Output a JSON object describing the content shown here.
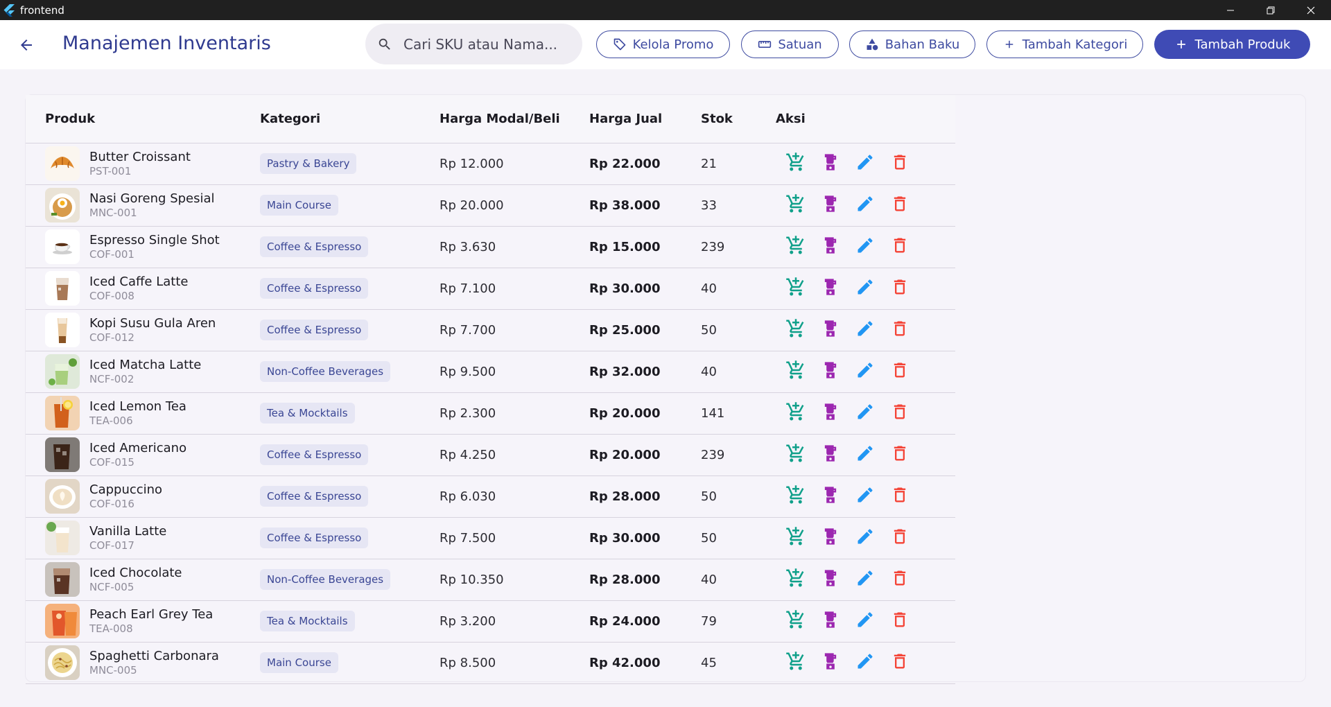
{
  "window": {
    "title": "frontend"
  },
  "header": {
    "title": "Manajemen Inventaris",
    "search_placeholder": "Cari SKU atau Nama...",
    "buttons": {
      "promo": "Kelola Promo",
      "unit": "Satuan",
      "material": "Bahan Baku",
      "add_category": "Tambah Kategori",
      "add_product": "Tambah Produk"
    }
  },
  "table": {
    "headers": [
      "Produk",
      "Kategori",
      "Harga Modal/Beli",
      "Harga Jual",
      "Stok",
      "Aksi"
    ],
    "rows": [
      {
        "name": "Butter Croissant",
        "sku": "PST-001",
        "category": "Pastry & Bakery",
        "buy": "Rp 12.000",
        "sell": "Rp 22.000",
        "stock": "21",
        "img": "croissant"
      },
      {
        "name": "Nasi Goreng Spesial",
        "sku": "MNC-001",
        "category": "Main Course",
        "buy": "Rp 20.000",
        "sell": "Rp 38.000",
        "stock": "33",
        "img": "friedrice"
      },
      {
        "name": "Espresso Single Shot",
        "sku": "COF-001",
        "category": "Coffee & Espresso",
        "buy": "Rp 3.630",
        "sell": "Rp 15.000",
        "stock": "239",
        "img": "espresso"
      },
      {
        "name": "Iced Caffe Latte",
        "sku": "COF-008",
        "category": "Coffee & Espresso",
        "buy": "Rp 7.100",
        "sell": "Rp 30.000",
        "stock": "40",
        "img": "latte"
      },
      {
        "name": "Kopi Susu Gula Aren",
        "sku": "COF-012",
        "category": "Coffee & Espresso",
        "buy": "Rp 7.700",
        "sell": "Rp 25.000",
        "stock": "50",
        "img": "palmsugar"
      },
      {
        "name": "Iced Matcha Latte",
        "sku": "NCF-002",
        "category": "Non-Coffee Beverages",
        "buy": "Rp 9.500",
        "sell": "Rp 32.000",
        "stock": "40",
        "img": "matcha"
      },
      {
        "name": "Iced Lemon Tea",
        "sku": "TEA-006",
        "category": "Tea & Mocktails",
        "buy": "Rp 2.300",
        "sell": "Rp 20.000",
        "stock": "141",
        "img": "lemontea"
      },
      {
        "name": "Iced Americano",
        "sku": "COF-015",
        "category": "Coffee & Espresso",
        "buy": "Rp 4.250",
        "sell": "Rp 20.000",
        "stock": "239",
        "img": "americano"
      },
      {
        "name": "Cappuccino",
        "sku": "COF-016",
        "category": "Coffee & Espresso",
        "buy": "Rp 6.030",
        "sell": "Rp 28.000",
        "stock": "50",
        "img": "cappuccino"
      },
      {
        "name": "Vanilla Latte",
        "sku": "COF-017",
        "category": "Coffee & Espresso",
        "buy": "Rp 7.500",
        "sell": "Rp 30.000",
        "stock": "50",
        "img": "vanilla"
      },
      {
        "name": "Iced Chocolate",
        "sku": "NCF-005",
        "category": "Non-Coffee Beverages",
        "buy": "Rp 10.350",
        "sell": "Rp 28.000",
        "stock": "40",
        "img": "chocolate"
      },
      {
        "name": "Peach Earl Grey Tea",
        "sku": "TEA-008",
        "category": "Tea & Mocktails",
        "buy": "Rp 3.200",
        "sell": "Rp 24.000",
        "stock": "79",
        "img": "peachtea"
      },
      {
        "name": "Spaghetti Carbonara",
        "sku": "MNC-005",
        "category": "Main Course",
        "buy": "Rp 8.500",
        "sell": "Rp 42.000",
        "stock": "45",
        "img": "carbonara"
      }
    ]
  },
  "icons": {
    "restock": "cart-plus-icon",
    "recipe": "blender-icon",
    "edit": "pencil-icon",
    "delete": "trash-icon"
  },
  "colors": {
    "primary": "#3f4bb5",
    "title": "#2f3a8f",
    "restock": "#10a08a",
    "recipe": "#9c27b0",
    "edit": "#2196f3",
    "delete": "#f44336"
  }
}
